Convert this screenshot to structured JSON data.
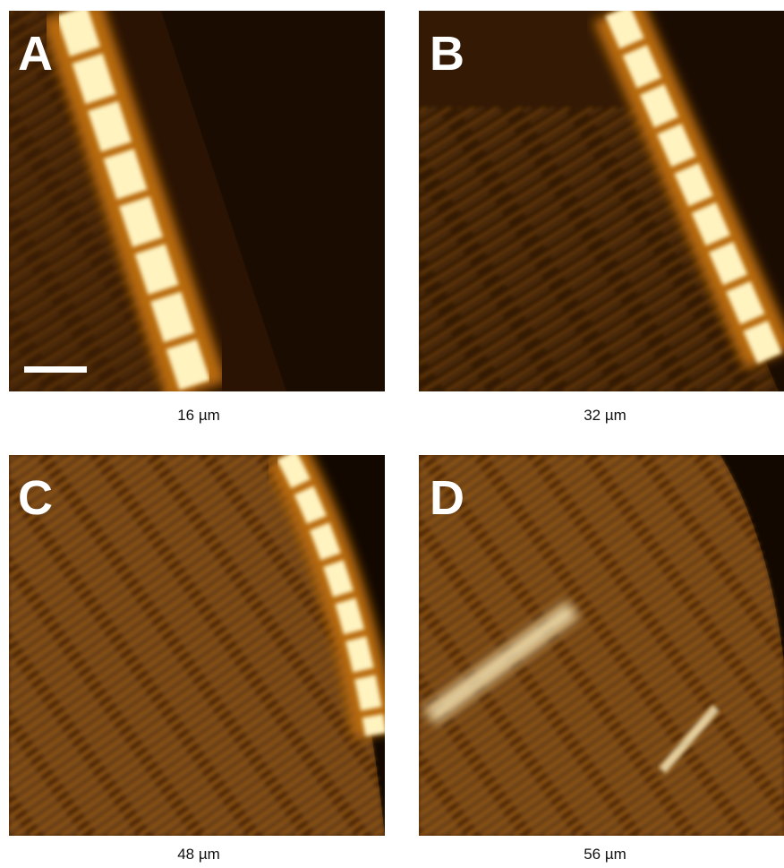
{
  "panels": [
    {
      "label": "A",
      "caption": "16 µm"
    },
    {
      "label": "B",
      "caption": "32 µm"
    },
    {
      "label": "C",
      "caption": "48 µm"
    },
    {
      "label": "D",
      "caption": "56 µm"
    }
  ]
}
